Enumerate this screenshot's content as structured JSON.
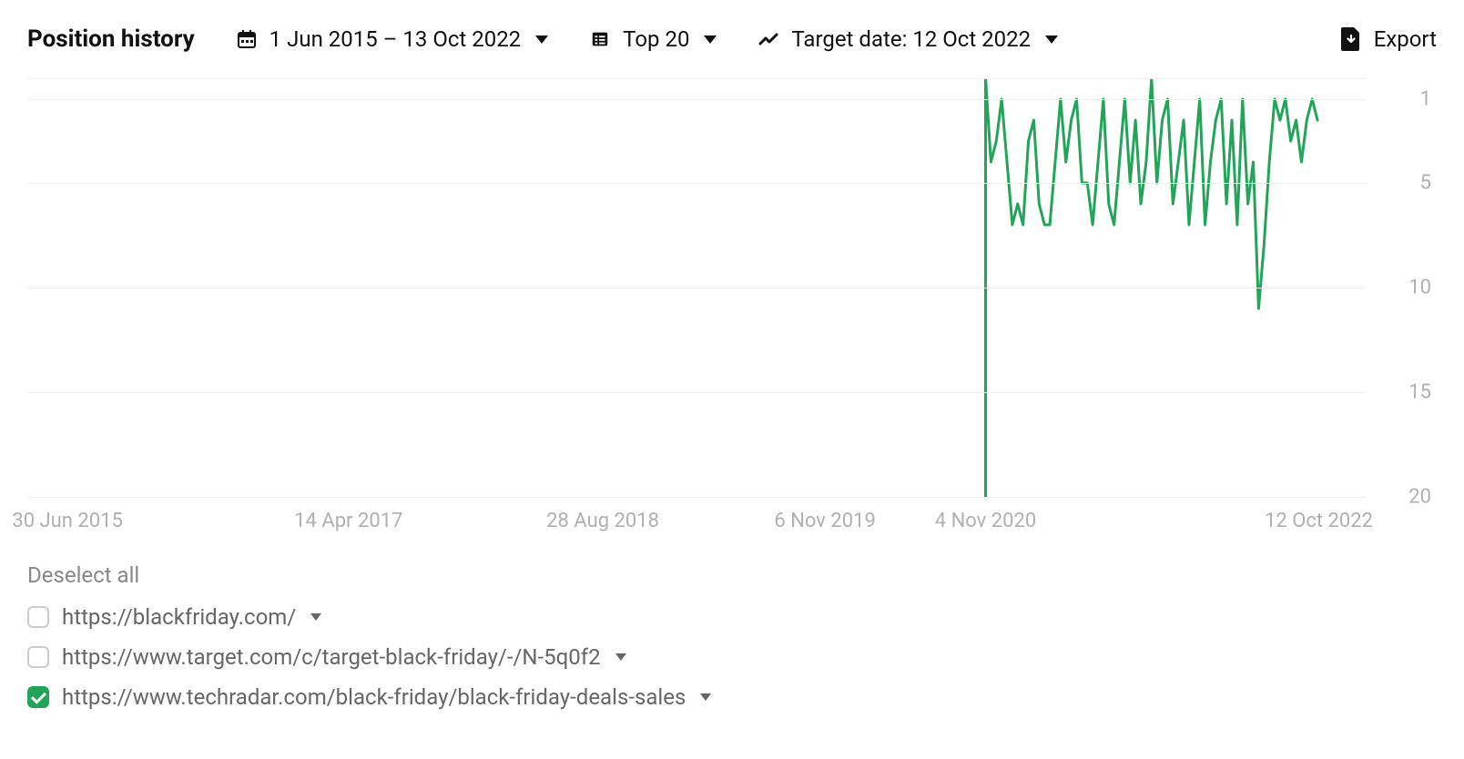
{
  "header": {
    "title": "Position history",
    "date_range": "1 Jun 2015 – 13 Oct 2022",
    "top_filter": "Top 20",
    "target_date": "Target date: 12 Oct 2022",
    "export_label": "Export"
  },
  "chart": {
    "type": "line",
    "line_color": "#22a559",
    "line_width": 3,
    "background_color": "#ffffff",
    "grid_color": "#eeeeee",
    "y_inverted": true,
    "ylim": [
      0,
      20
    ],
    "y_ticks": [
      1,
      5,
      10,
      15,
      20
    ],
    "x_ticks": [
      {
        "pos": 0.03,
        "label": "30 Jun 2015"
      },
      {
        "pos": 0.24,
        "label": "14 Apr 2017"
      },
      {
        "pos": 0.43,
        "label": "28 Aug 2018"
      },
      {
        "pos": 0.596,
        "label": "6 Nov 2019"
      },
      {
        "pos": 0.716,
        "label": "4 Nov 2020"
      },
      {
        "pos": 0.965,
        "label": "12 Oct 2022"
      }
    ],
    "series": [
      {
        "name": "techradar",
        "color": "#22a559",
        "points": [
          [
            0.716,
            20
          ],
          [
            0.716,
            0
          ],
          [
            0.72,
            4
          ],
          [
            0.724,
            3
          ],
          [
            0.728,
            1
          ],
          [
            0.732,
            4
          ],
          [
            0.736,
            7
          ],
          [
            0.74,
            6
          ],
          [
            0.744,
            7
          ],
          [
            0.748,
            3
          ],
          [
            0.752,
            2
          ],
          [
            0.756,
            6
          ],
          [
            0.76,
            7
          ],
          [
            0.764,
            7
          ],
          [
            0.768,
            4
          ],
          [
            0.772,
            1
          ],
          [
            0.776,
            4
          ],
          [
            0.78,
            2
          ],
          [
            0.784,
            1
          ],
          [
            0.788,
            5
          ],
          [
            0.792,
            5
          ],
          [
            0.796,
            7
          ],
          [
            0.8,
            4
          ],
          [
            0.804,
            1
          ],
          [
            0.808,
            6
          ],
          [
            0.812,
            7
          ],
          [
            0.816,
            4
          ],
          [
            0.82,
            1
          ],
          [
            0.824,
            5
          ],
          [
            0.828,
            2
          ],
          [
            0.832,
            6
          ],
          [
            0.836,
            4
          ],
          [
            0.84,
            0
          ],
          [
            0.844,
            5
          ],
          [
            0.848,
            2
          ],
          [
            0.852,
            1
          ],
          [
            0.856,
            6
          ],
          [
            0.86,
            4
          ],
          [
            0.864,
            2
          ],
          [
            0.868,
            7
          ],
          [
            0.872,
            4
          ],
          [
            0.876,
            1
          ],
          [
            0.88,
            7
          ],
          [
            0.884,
            4
          ],
          [
            0.888,
            2
          ],
          [
            0.892,
            1
          ],
          [
            0.896,
            6
          ],
          [
            0.9,
            2
          ],
          [
            0.904,
            7
          ],
          [
            0.908,
            1
          ],
          [
            0.912,
            6
          ],
          [
            0.916,
            4
          ],
          [
            0.92,
            11
          ],
          [
            0.924,
            8
          ],
          [
            0.928,
            4
          ],
          [
            0.932,
            1
          ],
          [
            0.936,
            2
          ],
          [
            0.94,
            1
          ],
          [
            0.944,
            3
          ],
          [
            0.948,
            2
          ],
          [
            0.952,
            4
          ],
          [
            0.956,
            2
          ],
          [
            0.96,
            1
          ],
          [
            0.964,
            2
          ]
        ]
      }
    ]
  },
  "legend": {
    "deselect_all": "Deselect all",
    "items": [
      {
        "checked": false,
        "url": "https://blackfriday.com/"
      },
      {
        "checked": false,
        "url": "https://www.target.com/c/target-black-friday/-/N-5q0f2"
      },
      {
        "checked": true,
        "url": "https://www.techradar.com/black-friday/black-friday-deals-sales"
      }
    ]
  }
}
